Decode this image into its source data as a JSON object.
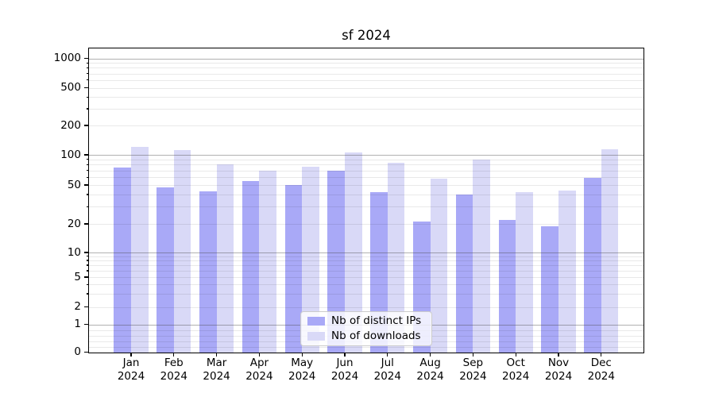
{
  "figure": {
    "title": "sf 2024"
  },
  "chart_data": {
    "type": "bar",
    "title": "sf 2024",
    "categories": [
      "Jan",
      "Feb",
      "Mar",
      "Apr",
      "May",
      "Jun",
      "Jul",
      "Aug",
      "Sep",
      "Oct",
      "Nov",
      "Dec"
    ],
    "category_year": "2024",
    "series": [
      {
        "name": "Nb of distinct IPs",
        "color": "#a9a9f7",
        "values": [
          75,
          47,
          43,
          55,
          50,
          70,
          42,
          21,
          40,
          22,
          19,
          59
        ]
      },
      {
        "name": "Nb of downloads",
        "color": "#d9d9f7",
        "values": [
          120,
          112,
          80,
          70,
          76,
          105,
          84,
          58,
          90,
          42,
          44,
          113
        ]
      }
    ],
    "yticks": [
      0,
      1,
      2,
      5,
      10,
      20,
      50,
      100,
      200,
      500,
      1000
    ],
    "ylim": [
      0,
      1300
    ],
    "yscale": "symlog",
    "grid": true,
    "legend_position": "lower center"
  }
}
